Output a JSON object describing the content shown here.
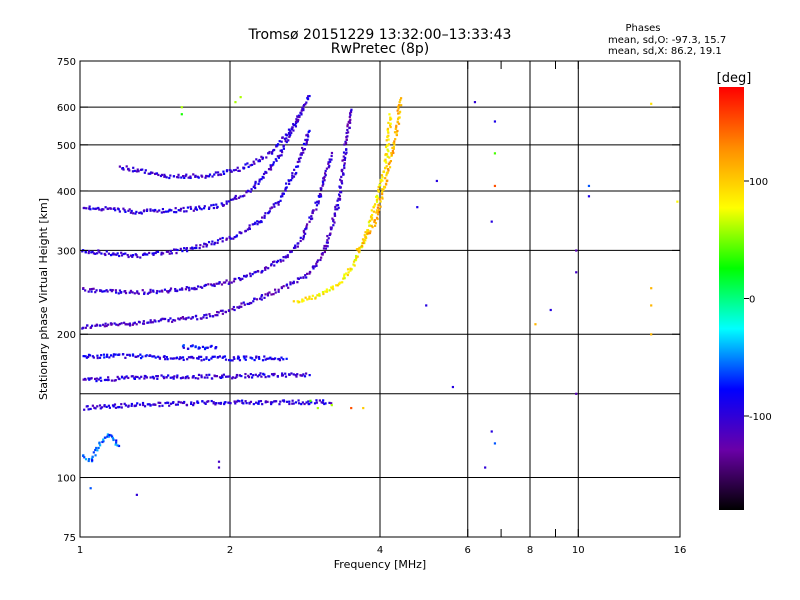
{
  "chart_data": {
    "type": "scatter",
    "title": "Tromsø 20151229 13:32:00–13:33:43",
    "subtitle": "RwPretec (8p)",
    "stats": {
      "heading": "Phases",
      "line_o": "mean, sd,O: -97.3, 15.7",
      "line_x": "mean, sd,X: 86.2, 19.1"
    },
    "xlabel": "Frequency [MHz]",
    "ylabel": "Stationary phase Virtual Height [km]",
    "x_scale": "log",
    "y_scale": "log",
    "xlim": [
      1,
      16
    ],
    "ylim": [
      75,
      750
    ],
    "grid": true,
    "x_major_ticks": [
      1,
      2,
      4,
      16
    ],
    "x_minor_ticks": [
      6,
      8,
      10
    ],
    "x_extra_ticks": [
      7,
      9
    ],
    "y_major_ticks": [
      75,
      100,
      200,
      300,
      400,
      500,
      600,
      750
    ],
    "y_grid_lines": [
      100,
      150,
      200,
      300,
      400,
      500,
      600
    ],
    "colorbar": {
      "label": "[deg]",
      "range": [
        -180,
        180
      ],
      "ticks": [
        100,
        0,
        -100
      ],
      "colors": [
        "#ff0000",
        "#ff8c00",
        "#ffff00",
        "#00ff00",
        "#00ffff",
        "#0000ff",
        "#6a00a8",
        "#000000"
      ]
    },
    "series": [
      {
        "component": "O",
        "curve": "F-trace main",
        "phase": -110,
        "x": [
          1.0,
          1.2,
          1.5,
          1.8,
          2.0,
          2.3,
          2.6,
          2.9,
          3.1,
          3.3,
          3.5
        ],
        "y": [
          207,
          210,
          214,
          218,
          225,
          238,
          252,
          270,
          300,
          380,
          600
        ]
      },
      {
        "component": "O",
        "curve": "F-trace echo 2",
        "phase": -105,
        "x": [
          1.0,
          1.3,
          1.6,
          2.0,
          2.3,
          2.6,
          2.8,
          3.0,
          3.2
        ],
        "y": [
          248,
          245,
          248,
          258,
          272,
          290,
          320,
          380,
          480
        ]
      },
      {
        "component": "O",
        "curve": "F-trace echo 3",
        "phase": -100,
        "x": [
          1.0,
          1.3,
          1.6,
          2.0,
          2.3,
          2.5,
          2.7,
          2.9
        ],
        "y": [
          300,
          292,
          300,
          318,
          345,
          380,
          440,
          540
        ]
      },
      {
        "component": "O",
        "curve": "upper trace",
        "phase": -100,
        "x": [
          1.0,
          1.3,
          1.6,
          1.9,
          2.2,
          2.5,
          2.8
        ],
        "y": [
          370,
          362,
          365,
          372,
          400,
          470,
          600
        ]
      },
      {
        "component": "O",
        "curve": "top trace",
        "phase": -100,
        "x": [
          1.2,
          1.5,
          1.8,
          2.1,
          2.4,
          2.7,
          2.9
        ],
        "y": [
          450,
          430,
          430,
          445,
          480,
          550,
          640
        ]
      },
      {
        "component": "X",
        "curve": "F-trace X",
        "phase": 85,
        "x": [
          2.7,
          3.0,
          3.3,
          3.5,
          3.7,
          3.9,
          4.1,
          4.2
        ],
        "y": [
          235,
          240,
          255,
          275,
          310,
          370,
          450,
          580
        ]
      },
      {
        "component": "X",
        "curve": "outer X",
        "phase": 110,
        "x": [
          3.6,
          3.9,
          4.1,
          4.3,
          4.4
        ],
        "y": [
          300,
          340,
          420,
          520,
          630
        ]
      },
      {
        "component": "O",
        "curve": "E band 1",
        "phase": -90,
        "x": [
          1.0,
          1.3,
          1.6,
          2.0,
          2.3,
          2.6
        ],
        "y": [
          180,
          180,
          178,
          178,
          178,
          178
        ]
      },
      {
        "component": "O",
        "curve": "E band 2",
        "phase": -100,
        "x": [
          1.0,
          1.3,
          1.6,
          2.0,
          2.3,
          2.6,
          2.9
        ],
        "y": [
          160,
          162,
          163,
          163,
          164,
          164,
          165
        ]
      },
      {
        "component": "O",
        "curve": "E band 3",
        "phase": -100,
        "x": [
          1.0,
          1.3,
          1.6,
          2.0,
          2.3,
          2.6,
          2.9,
          3.2
        ],
        "y": [
          140,
          142,
          143,
          144,
          144,
          144,
          144,
          144
        ]
      },
      {
        "component": "O",
        "curve": "low echoes",
        "phase": -60,
        "x": [
          1.0,
          1.05,
          1.1,
          1.15,
          1.2
        ],
        "y": [
          112,
          108,
          118,
          124,
          115
        ]
      },
      {
        "component": "O",
        "curve": "mid band",
        "phase": -80,
        "x": [
          1.6,
          1.7,
          1.8,
          1.9
        ],
        "y": [
          188,
          188,
          187,
          188
        ]
      }
    ],
    "scattered": [
      {
        "x": 1.6,
        "y": 580,
        "phase": 30
      },
      {
        "x": 2.05,
        "y": 615,
        "phase": 60
      },
      {
        "x": 2.1,
        "y": 630,
        "phase": 60
      },
      {
        "x": 6.2,
        "y": 615,
        "phase": -100
      },
      {
        "x": 6.8,
        "y": 560,
        "phase": -90
      },
      {
        "x": 6.8,
        "y": 480,
        "phase": 40
      },
      {
        "x": 6.8,
        "y": 410,
        "phase": 150
      },
      {
        "x": 6.7,
        "y": 345,
        "phase": -95
      },
      {
        "x": 5.2,
        "y": 420,
        "phase": -95
      },
      {
        "x": 4.75,
        "y": 370,
        "phase": -90
      },
      {
        "x": 10.5,
        "y": 410,
        "phase": -60
      },
      {
        "x": 9.9,
        "y": 300,
        "phase": -120
      },
      {
        "x": 9.9,
        "y": 270,
        "phase": -110
      },
      {
        "x": 10.5,
        "y": 390,
        "phase": -90
      },
      {
        "x": 8.8,
        "y": 225,
        "phase": -95
      },
      {
        "x": 8.2,
        "y": 210,
        "phase": 110
      },
      {
        "x": 4.95,
        "y": 230,
        "phase": -95
      },
      {
        "x": 5.6,
        "y": 155,
        "phase": -95
      },
      {
        "x": 6.7,
        "y": 125,
        "phase": -95
      },
      {
        "x": 6.8,
        "y": 118,
        "phase": -60
      },
      {
        "x": 6.5,
        "y": 105,
        "phase": -100
      },
      {
        "x": 9.9,
        "y": 150,
        "phase": -120
      },
      {
        "x": 14.0,
        "y": 610,
        "phase": 90
      },
      {
        "x": 14.0,
        "y": 250,
        "phase": 110
      },
      {
        "x": 14.0,
        "y": 230,
        "phase": 110
      },
      {
        "x": 14.0,
        "y": 200,
        "phase": 110
      },
      {
        "x": 15.8,
        "y": 380,
        "phase": 80
      },
      {
        "x": 1.9,
        "y": 105,
        "phase": -110
      },
      {
        "x": 1.9,
        "y": 108,
        "phase": -110
      },
      {
        "x": 1.3,
        "y": 92,
        "phase": -100
      },
      {
        "x": 1.05,
        "y": 95,
        "phase": -60
      },
      {
        "x": 1.6,
        "y": 600,
        "phase": 60
      },
      {
        "x": 2.9,
        "y": 145,
        "phase": 40
      },
      {
        "x": 3.0,
        "y": 140,
        "phase": 60
      },
      {
        "x": 3.2,
        "y": 142,
        "phase": 60
      },
      {
        "x": 3.5,
        "y": 140,
        "phase": 150
      },
      {
        "x": 3.7,
        "y": 140,
        "phase": 100
      }
    ]
  }
}
